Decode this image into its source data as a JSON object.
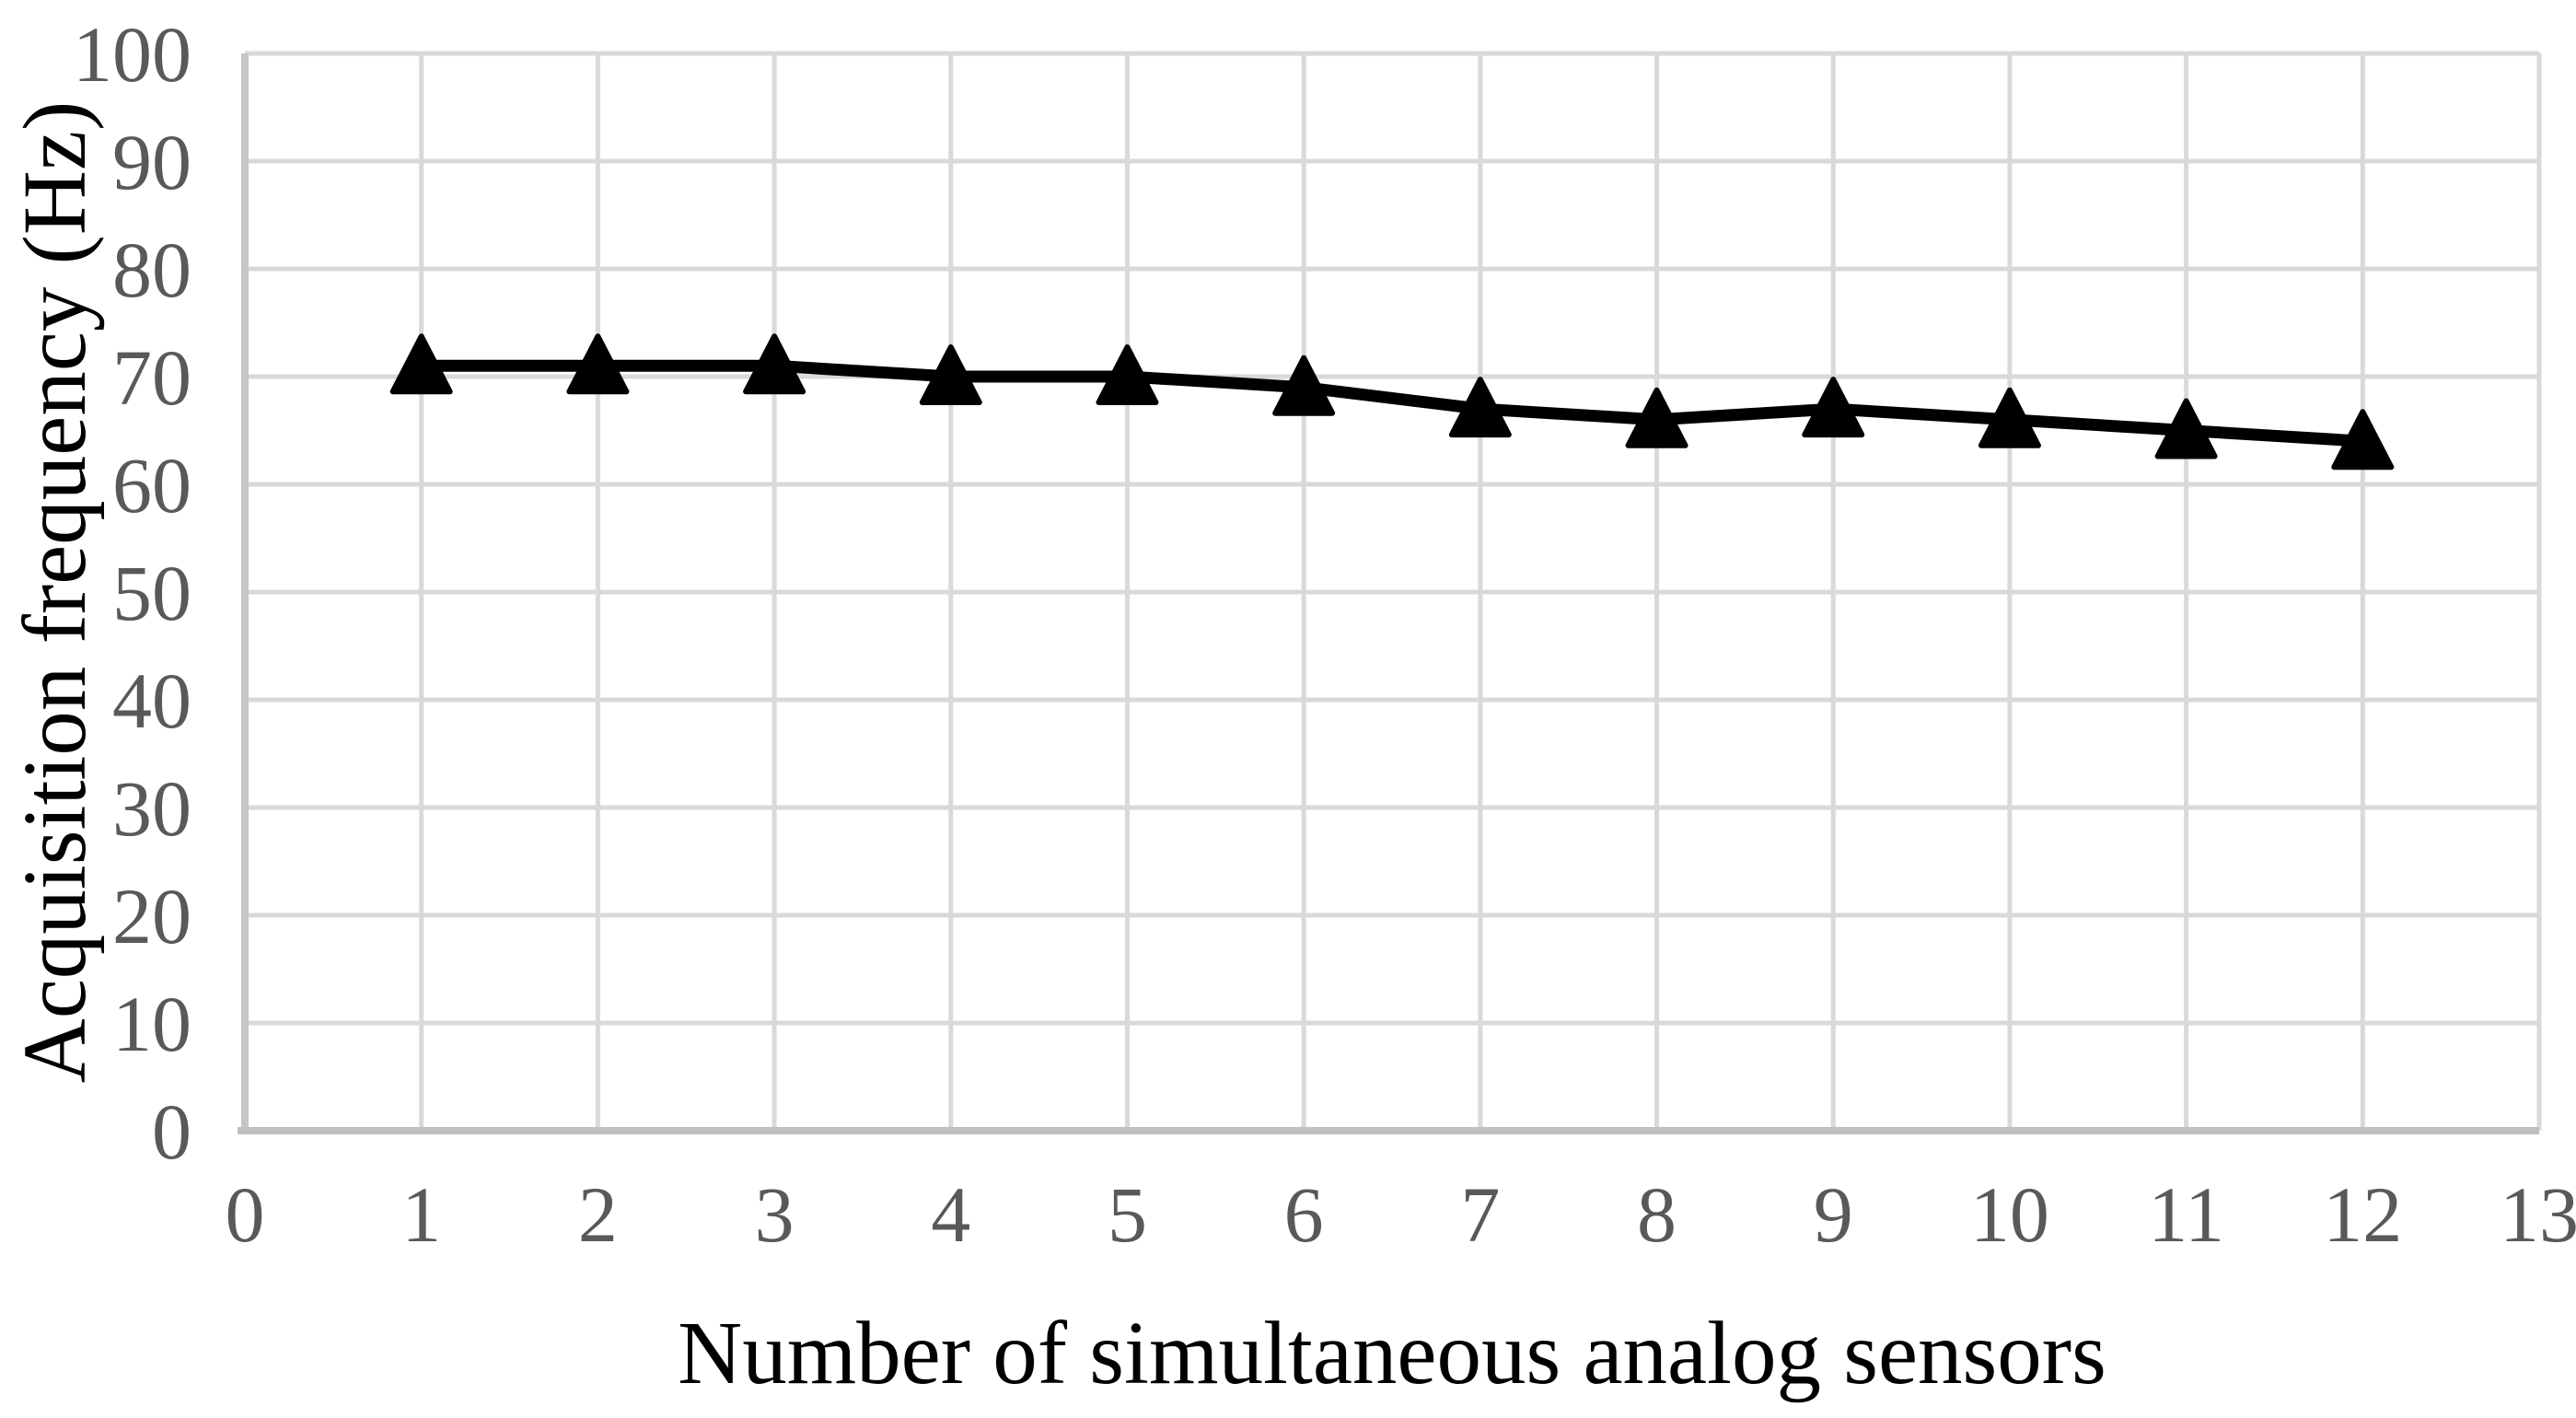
{
  "chart_data": {
    "type": "line",
    "title": "",
    "xlabel": "Number of simultaneous analog sensors",
    "ylabel": "Acquisition frequency (Hz)",
    "x": [
      1,
      2,
      3,
      4,
      5,
      6,
      7,
      8,
      9,
      10,
      11,
      12
    ],
    "series": [
      {
        "name": "Acquisition frequency",
        "values": [
          71,
          71,
          71,
          70,
          70,
          69,
          67,
          66,
          67,
          66,
          65,
          64
        ],
        "marker": "triangle-up",
        "color": "#000000"
      }
    ],
    "xlim": [
      0,
      13
    ],
    "ylim": [
      0,
      100
    ],
    "xticks": [
      0,
      1,
      2,
      3,
      4,
      5,
      6,
      7,
      8,
      9,
      10,
      11,
      12,
      13
    ],
    "yticks": [
      0,
      10,
      20,
      30,
      40,
      50,
      60,
      70,
      80,
      90,
      100
    ],
    "grid": "both",
    "legend": "none",
    "colors": {
      "gridline": "#d9d9d9",
      "axis_line": "#bfbfbf",
      "left_axis_line": "#c6c6c6",
      "tick_label": "#595959",
      "axis_title": "#000000",
      "series_line": "#000000",
      "background": "#ffffff"
    }
  }
}
